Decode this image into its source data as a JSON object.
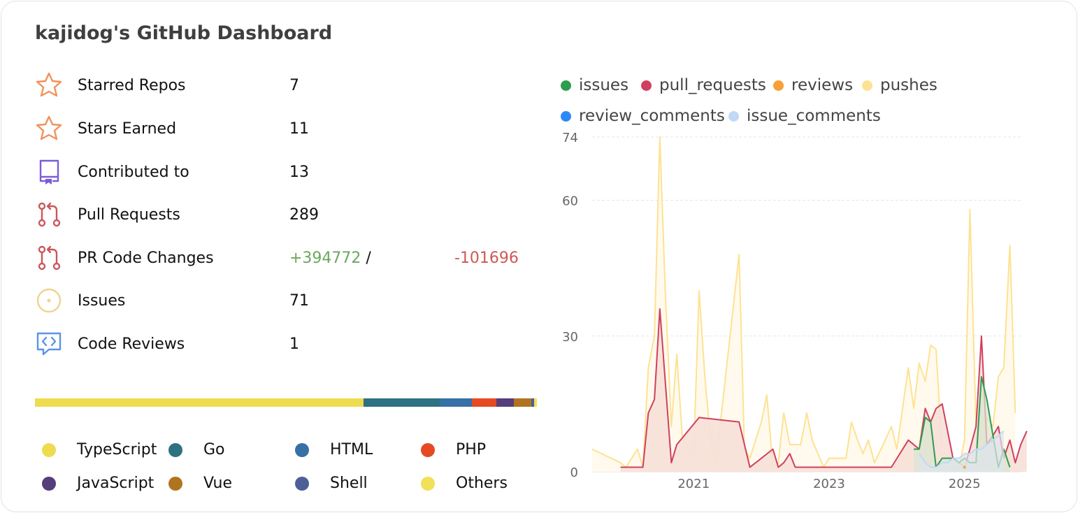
{
  "title": "kajidog's GitHub Dashboard",
  "stats": [
    {
      "label": "Starred Repos",
      "value": "7",
      "icon": "star-icon",
      "color": "#f0925b"
    },
    {
      "label": "Stars Earned",
      "value": "11",
      "icon": "star-icon",
      "color": "#f0925b"
    },
    {
      "label": "Contributed to",
      "value": "13",
      "icon": "repo-icon",
      "color": "#7a5cd6"
    },
    {
      "label": "Pull Requests",
      "value": "289",
      "icon": "pull-request-icon",
      "color": "#c9575d"
    },
    {
      "label": "PR Code Changes",
      "additions": "+394772",
      "separator": "/",
      "deletions": "-101696",
      "icon": "pull-request-icon",
      "color": "#c9575d"
    },
    {
      "label": "Issues",
      "value": "71",
      "icon": "issue-icon",
      "color": "#f1d28e"
    },
    {
      "label": "Code Reviews",
      "value": "1",
      "icon": "code-review-icon",
      "color": "#5a93e8"
    }
  ],
  "languages": [
    {
      "name": "TypeScript",
      "color": "#efdb50",
      "percent": 65.4
    },
    {
      "name": "Go",
      "color": "#2e7182",
      "percent": 15.3
    },
    {
      "name": "HTML",
      "color": "#3770a5",
      "percent": 6.3
    },
    {
      "name": "PHP",
      "color": "#e54a25",
      "percent": 4.9
    },
    {
      "name": "JavaScript",
      "color": "#563d7c",
      "percent": 3.5
    },
    {
      "name": "Vue",
      "color": "#b0741f",
      "percent": 3.5
    },
    {
      "name": "Shell",
      "color": "#4d5f98",
      "percent": 0.6
    },
    {
      "name": "Others",
      "color": "#f0e05a",
      "percent": 0.5
    }
  ],
  "chart_data": {
    "type": "line",
    "x_unit": "year",
    "xlim": [
      2019.5,
      2025.85
    ],
    "ylim": [
      0,
      74
    ],
    "yticks": [
      0,
      30,
      60,
      74
    ],
    "xticks": [
      "2021",
      "2023",
      "2025"
    ],
    "grid": true,
    "legend_position": "top",
    "series": [
      {
        "name": "issues",
        "color": "#2f9c4f",
        "fill": "#d9e6d2",
        "points": [
          [
            2024.25,
            5
          ],
          [
            2024.33,
            5
          ],
          [
            2024.42,
            12
          ],
          [
            2024.5,
            11
          ],
          [
            2024.58,
            1
          ],
          [
            2024.67,
            3
          ],
          [
            2024.75,
            3
          ],
          [
            2024.83,
            3
          ],
          [
            2024.92,
            2
          ],
          [
            2025.0,
            3
          ],
          [
            2025.08,
            2
          ],
          [
            2025.17,
            2
          ],
          [
            2025.25,
            21
          ],
          [
            2025.33,
            16
          ],
          [
            2025.42,
            8
          ],
          [
            2025.5,
            1
          ],
          [
            2025.58,
            5
          ],
          [
            2025.67,
            1
          ]
        ]
      },
      {
        "name": "pull_requests",
        "color": "#d0405f",
        "fill": "#f7e0d8",
        "points": [
          [
            2019.92,
            1
          ],
          [
            2020.0,
            1
          ],
          [
            2020.08,
            1
          ],
          [
            2020.17,
            1
          ],
          [
            2020.25,
            1
          ],
          [
            2020.33,
            13
          ],
          [
            2020.42,
            16
          ],
          [
            2020.5,
            36
          ],
          [
            2020.67,
            2
          ],
          [
            2020.75,
            6
          ],
          [
            2021.08,
            12
          ],
          [
            2021.67,
            11
          ],
          [
            2021.83,
            1
          ],
          [
            2022.17,
            5
          ],
          [
            2022.25,
            1
          ],
          [
            2022.33,
            2
          ],
          [
            2022.42,
            4
          ],
          [
            2022.5,
            1
          ],
          [
            2022.83,
            1
          ],
          [
            2023.33,
            1
          ],
          [
            2023.92,
            1
          ],
          [
            2024.17,
            7
          ],
          [
            2024.33,
            5
          ],
          [
            2024.42,
            14
          ],
          [
            2024.5,
            11
          ],
          [
            2024.58,
            14
          ],
          [
            2024.67,
            15
          ],
          [
            2024.83,
            3
          ],
          [
            2024.92,
            2
          ],
          [
            2025.0,
            1
          ],
          [
            2025.08,
            5
          ],
          [
            2025.17,
            10
          ],
          [
            2025.25,
            30
          ],
          [
            2025.33,
            6
          ],
          [
            2025.42,
            8
          ],
          [
            2025.5,
            10
          ],
          [
            2025.58,
            3
          ],
          [
            2025.67,
            7
          ],
          [
            2025.75,
            2
          ],
          [
            2025.83,
            6
          ],
          [
            2025.92,
            9
          ]
        ]
      },
      {
        "name": "reviews",
        "color": "#f7a037",
        "fill": "none",
        "points": [
          [
            2025.0,
            1
          ]
        ]
      },
      {
        "name": "pushes",
        "color": "#fde293",
        "fill": "#fffaeb",
        "points": [
          [
            2019.5,
            5
          ],
          [
            2019.92,
            2
          ],
          [
            2020.0,
            1
          ],
          [
            2020.17,
            5
          ],
          [
            2020.25,
            1
          ],
          [
            2020.33,
            23
          ],
          [
            2020.42,
            30
          ],
          [
            2020.5,
            74
          ],
          [
            2020.58,
            40
          ],
          [
            2020.67,
            10
          ],
          [
            2020.75,
            26
          ],
          [
            2020.83,
            8
          ],
          [
            2020.92,
            5
          ],
          [
            2021.0,
            4
          ],
          [
            2021.08,
            40
          ],
          [
            2021.17,
            20
          ],
          [
            2021.25,
            7
          ],
          [
            2021.33,
            2
          ],
          [
            2021.5,
            25
          ],
          [
            2021.67,
            48
          ],
          [
            2021.75,
            5
          ],
          [
            2021.83,
            3
          ],
          [
            2022.0,
            11
          ],
          [
            2022.08,
            17
          ],
          [
            2022.17,
            1
          ],
          [
            2022.25,
            2
          ],
          [
            2022.33,
            13
          ],
          [
            2022.42,
            6
          ],
          [
            2022.5,
            6
          ],
          [
            2022.58,
            6
          ],
          [
            2022.67,
            13
          ],
          [
            2022.75,
            7
          ],
          [
            2022.92,
            1
          ],
          [
            2023.0,
            3
          ],
          [
            2023.25,
            3
          ],
          [
            2023.33,
            11
          ],
          [
            2023.42,
            7
          ],
          [
            2023.5,
            4
          ],
          [
            2023.58,
            7
          ],
          [
            2023.67,
            2
          ],
          [
            2023.83,
            7
          ],
          [
            2023.92,
            10
          ],
          [
            2024.0,
            5
          ],
          [
            2024.17,
            23
          ],
          [
            2024.25,
            14
          ],
          [
            2024.33,
            24
          ],
          [
            2024.42,
            20
          ],
          [
            2024.5,
            28
          ],
          [
            2024.58,
            27
          ],
          [
            2024.67,
            4
          ],
          [
            2024.75,
            4
          ],
          [
            2024.83,
            2
          ],
          [
            2024.92,
            1
          ],
          [
            2025.0,
            7
          ],
          [
            2025.08,
            58
          ],
          [
            2025.17,
            10
          ],
          [
            2025.25,
            1
          ],
          [
            2025.33,
            12
          ],
          [
            2025.42,
            10
          ],
          [
            2025.5,
            21
          ],
          [
            2025.58,
            23
          ],
          [
            2025.67,
            50
          ],
          [
            2025.75,
            13
          ]
        ]
      },
      {
        "name": "review_comments",
        "color": "#2b89f5",
        "fill": "none",
        "points": []
      },
      {
        "name": "issue_comments",
        "color": "#c1d8f7",
        "fill": "#dee5ec",
        "points": [
          [
            2024.33,
            4
          ],
          [
            2024.42,
            2
          ],
          [
            2024.5,
            1
          ],
          [
            2024.58,
            1
          ],
          [
            2024.67,
            2
          ],
          [
            2024.75,
            2
          ],
          [
            2024.83,
            3
          ],
          [
            2024.92,
            3
          ],
          [
            2025.0,
            4
          ],
          [
            2025.08,
            4
          ],
          [
            2025.17,
            5
          ],
          [
            2025.25,
            5
          ],
          [
            2025.33,
            6
          ],
          [
            2025.42,
            7
          ],
          [
            2025.5,
            8
          ],
          [
            2025.58,
            9
          ]
        ]
      }
    ]
  }
}
